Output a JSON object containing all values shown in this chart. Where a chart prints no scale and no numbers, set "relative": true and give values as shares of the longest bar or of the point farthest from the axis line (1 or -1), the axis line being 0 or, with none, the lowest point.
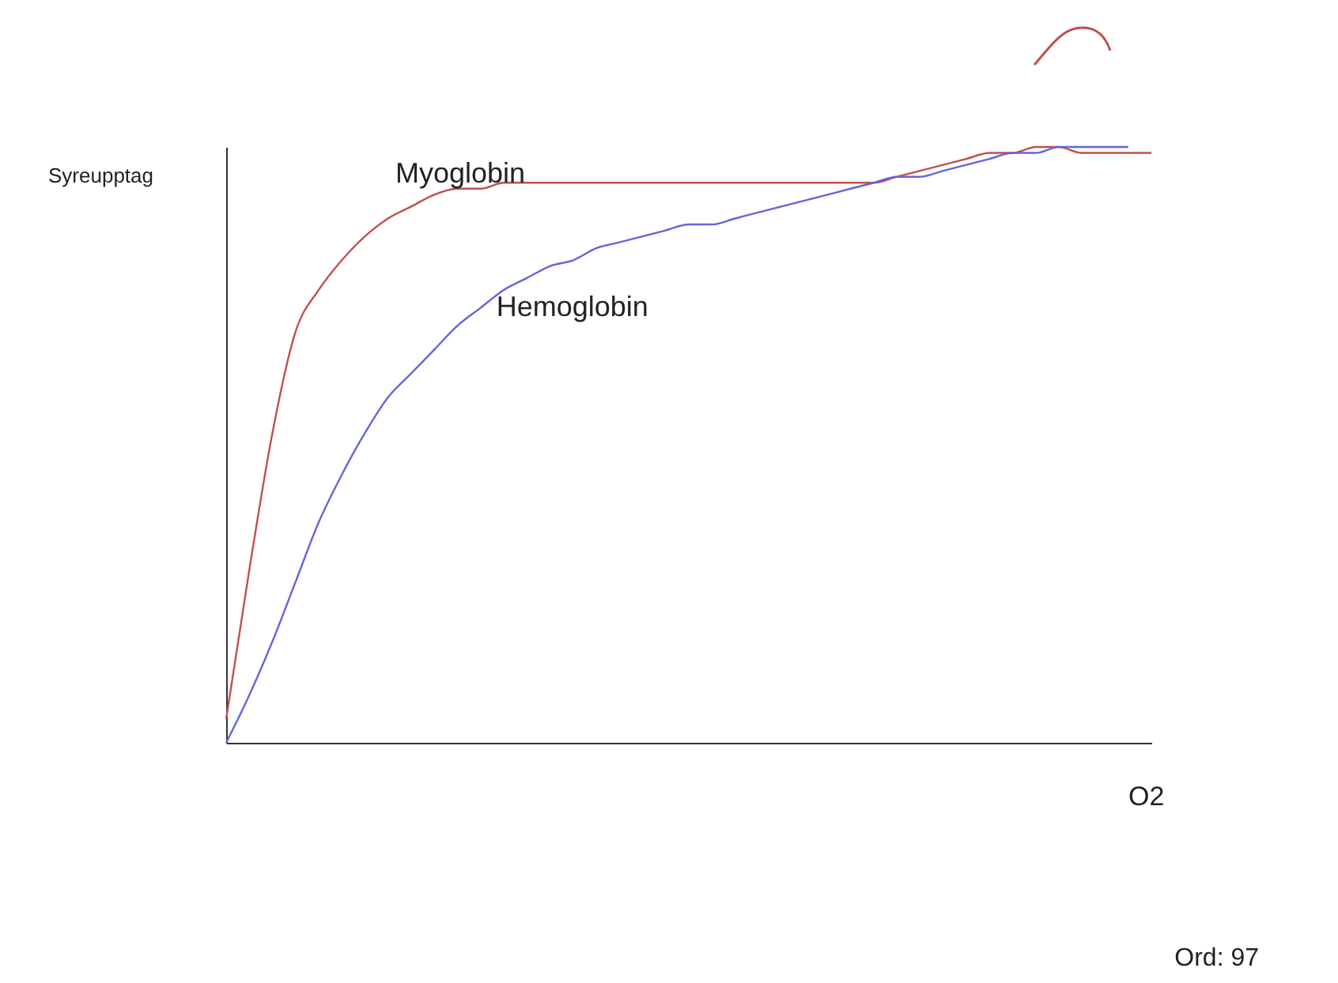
{
  "chart_data": {
    "type": "line",
    "relative": true,
    "xlabel": "O2",
    "ylabel": "Syreupptag",
    "categories": [
      null,
      null,
      null,
      null,
      null,
      null,
      null,
      null,
      null,
      null,
      null,
      null,
      null,
      null,
      null,
      null,
      null,
      null,
      null,
      null,
      null,
      null,
      null,
      null,
      null,
      null,
      null,
      null,
      null,
      null,
      null,
      null,
      null,
      null,
      null,
      null,
      null,
      null,
      null,
      null,
      null
    ],
    "series": [
      {
        "name": "Myoglobin",
        "color": "#c0504d",
        "values": [
          0.04,
          0.29,
          0.52,
          0.69,
          0.76,
          0.81,
          0.85,
          0.88,
          0.9,
          0.92,
          0.93,
          0.93,
          0.94,
          0.94,
          0.94,
          0.94,
          0.94,
          0.94,
          0.94,
          0.94,
          0.94,
          0.94,
          0.94,
          0.94,
          0.94,
          0.94,
          0.94,
          0.94,
          0.94,
          0.95,
          0.96,
          0.97,
          0.98,
          0.99,
          0.99,
          1,
          1,
          0.99,
          0.99,
          0.99,
          0.99
        ]
      },
      {
        "name": "Hemoglobin",
        "color": "#6464dc",
        "values": [
          0,
          0.08,
          0.17,
          0.27,
          0.37,
          0.45,
          0.52,
          0.58,
          0.62,
          0.66,
          0.7,
          0.73,
          0.76,
          0.78,
          0.8,
          0.81,
          0.83,
          0.84,
          0.85,
          0.86,
          0.87,
          0.87,
          0.88,
          0.89,
          0.9,
          0.91,
          0.92,
          0.93,
          0.94,
          0.95,
          0.95,
          0.96,
          0.97,
          0.98,
          0.99,
          0.99,
          1,
          1,
          1,
          1,
          null
        ]
      }
    ],
    "marker": "none",
    "line_style": "solid",
    "legend": false,
    "grid": false,
    "tick_labels": false,
    "annotations": [
      "Ord: 97"
    ]
  }
}
